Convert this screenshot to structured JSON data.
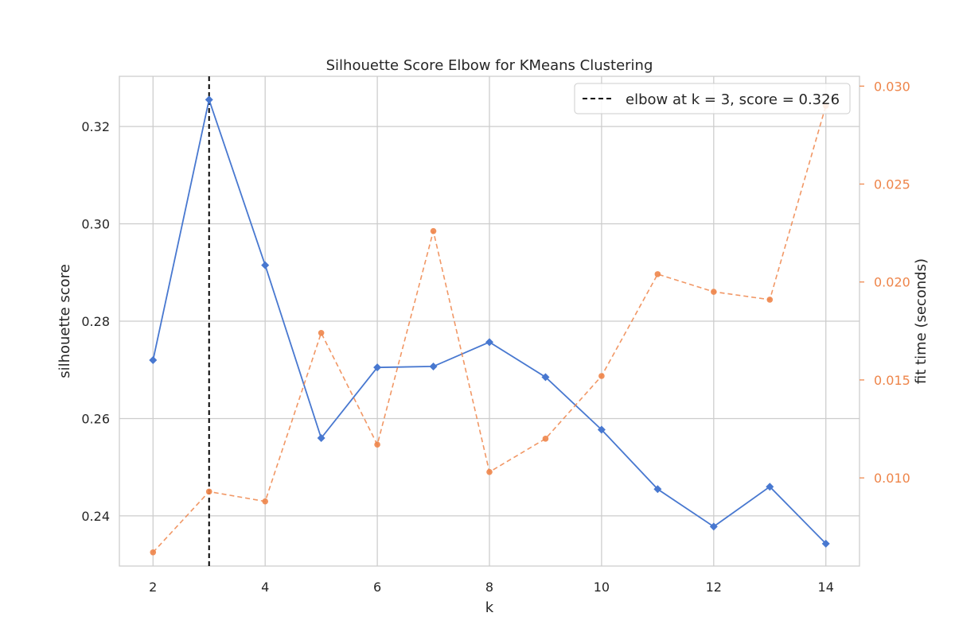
{
  "chart_data": {
    "type": "line",
    "title": "Silhouette Score Elbow for KMeans Clustering",
    "xlabel": "k",
    "ylabel": "silhouette score",
    "y2label": "fit time (seconds)",
    "x": [
      2,
      3,
      4,
      5,
      6,
      7,
      8,
      9,
      10,
      11,
      12,
      13,
      14
    ],
    "xticks": [
      "2",
      "4",
      "6",
      "8",
      "10",
      "12",
      "14"
    ],
    "xtick_values": [
      2,
      4,
      6,
      8,
      10,
      12,
      14
    ],
    "xlim": [
      1.4,
      14.6
    ],
    "ylim": [
      0.2297,
      0.3303
    ],
    "yticks": [
      "0.24",
      "0.26",
      "0.28",
      "0.30",
      "0.32"
    ],
    "ytick_values": [
      0.24,
      0.26,
      0.28,
      0.3,
      0.32
    ],
    "y2lim": [
      0.0055,
      0.0305
    ],
    "y2ticks": [
      "0.010",
      "0.015",
      "0.020",
      "0.025",
      "0.030"
    ],
    "y2tick_values": [
      0.01,
      0.015,
      0.02,
      0.025,
      0.03
    ],
    "grid": true,
    "legend_position": "top-right",
    "elbow_k": 3,
    "legend_label": "elbow at k = 3, score = 0.326",
    "series": [
      {
        "name": "silhouette score",
        "axis": "left",
        "color": "#4878d0",
        "marker": "diamond",
        "values": [
          0.272,
          0.3255,
          0.2915,
          0.256,
          0.2705,
          0.2707,
          0.2757,
          0.2685,
          0.2577,
          0.2455,
          0.2378,
          0.246,
          0.2343
        ]
      },
      {
        "name": "fit time (seconds)",
        "axis": "right",
        "color": "#ee854a",
        "marker": "circle",
        "dashed": true,
        "values": [
          0.0062,
          0.0093,
          0.0088,
          0.0174,
          0.0117,
          0.0226,
          0.0103,
          0.012,
          0.0152,
          0.0204,
          0.0195,
          0.0191,
          0.029
        ]
      }
    ]
  }
}
